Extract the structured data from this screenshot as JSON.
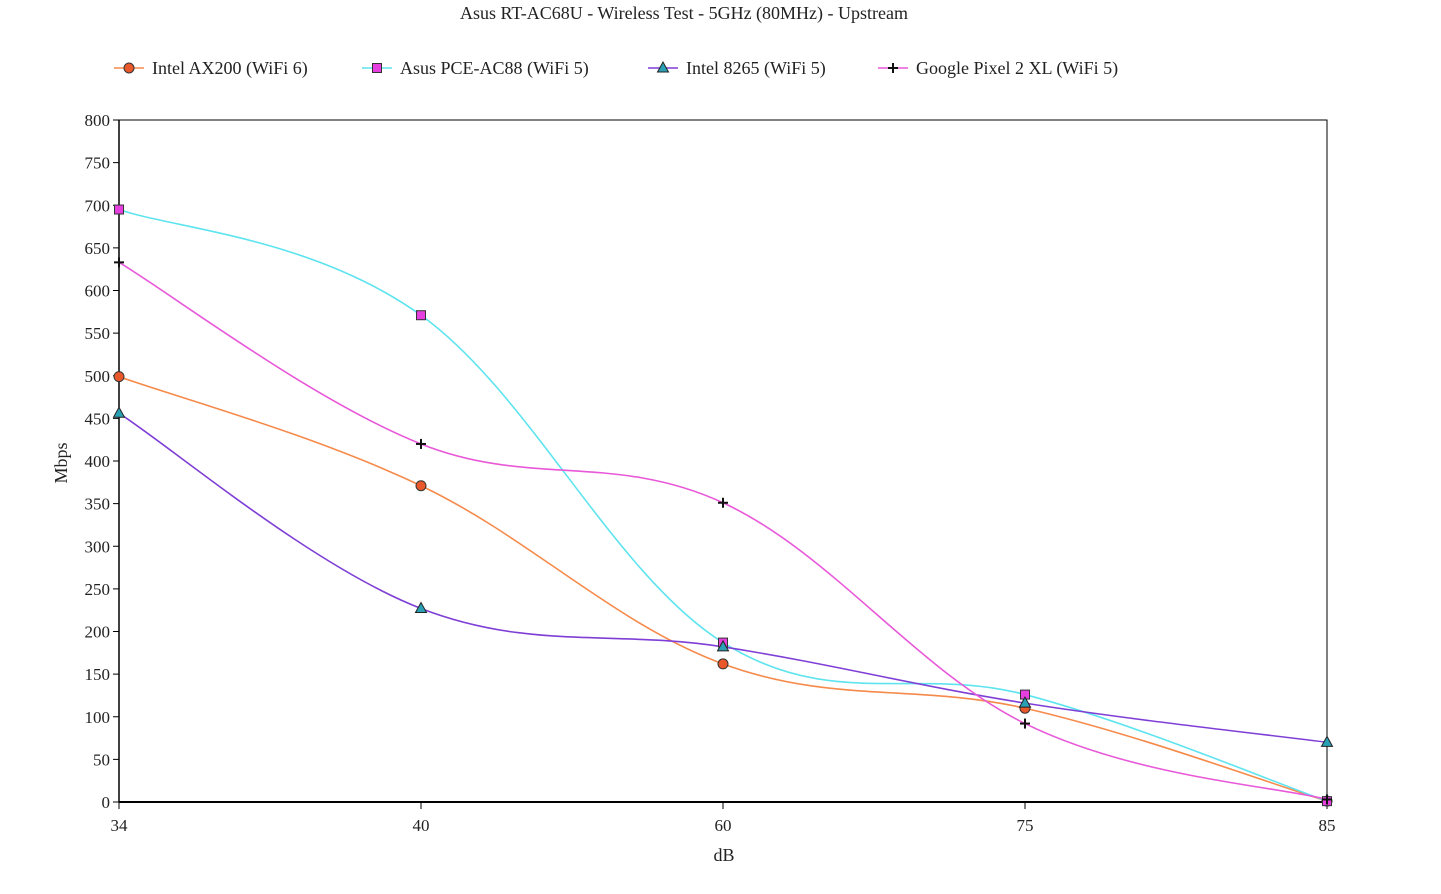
{
  "chart_data": {
    "type": "line",
    "title": "Asus RT-AC68U - Wireless Test - 5GHz (80MHz) - Upstream",
    "xlabel": "dB",
    "ylabel": "Mbps",
    "categories": [
      "34",
      "40",
      "60",
      "75",
      "85"
    ],
    "ylim": [
      0,
      800
    ],
    "yticks": [
      0,
      50,
      100,
      150,
      200,
      250,
      300,
      350,
      400,
      450,
      500,
      550,
      600,
      650,
      700,
      750,
      800
    ],
    "grid": false,
    "legend_position": "top",
    "series": [
      {
        "name": "Intel AX200 (WiFi 6)",
        "values": [
          499,
          371,
          162,
          110,
          1
        ],
        "color": "#f58a4b",
        "marker": "circle",
        "marker_color": "#e8582a"
      },
      {
        "name": "Asus PCE-AC88 (WiFi 5)",
        "values": [
          695,
          571,
          187,
          126,
          1
        ],
        "color": "#5ee4ef",
        "marker": "square",
        "marker_color": "#e53fe0"
      },
      {
        "name": "Intel 8265 (WiFi 5)",
        "values": [
          456,
          227,
          182,
          116,
          70
        ],
        "color": "#7f3fd6",
        "marker": "triangle",
        "marker_color": "#2aa0b5"
      },
      {
        "name": "Google Pixel 2 XL (WiFi 5)",
        "values": [
          633,
          420,
          351,
          92,
          3
        ],
        "color": "#e858d8",
        "marker": "plus",
        "marker_color": "#111111"
      }
    ]
  }
}
